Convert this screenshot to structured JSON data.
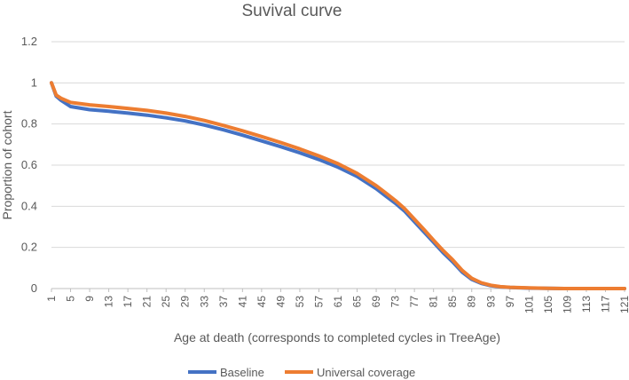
{
  "chart_data": {
    "type": "line",
    "title": "Suvival curve",
    "xlabel": "Age at death (corresponds to completed cycles in TreeAge)",
    "ylabel": "Proportion of cohort",
    "ylim": [
      0,
      1.2
    ],
    "yticks": [
      "0",
      "0.2",
      "0.4",
      "0.6",
      "0.8",
      "1",
      "1.2"
    ],
    "x_range": [
      1,
      121
    ],
    "xticks": [
      "1",
      "5",
      "9",
      "13",
      "17",
      "21",
      "25",
      "29",
      "33",
      "37",
      "41",
      "45",
      "49",
      "53",
      "57",
      "61",
      "65",
      "69",
      "73",
      "77",
      "81",
      "85",
      "89",
      "93",
      "97",
      "101",
      "105",
      "109",
      "113",
      "117",
      "121"
    ],
    "grid": true,
    "legend_position": "bottom",
    "series": [
      {
        "name": "Baseline",
        "color": "#4472c4",
        "points": [
          [
            1,
            1.0
          ],
          [
            2,
            0.935
          ],
          [
            3,
            0.915
          ],
          [
            5,
            0.885
          ],
          [
            9,
            0.87
          ],
          [
            13,
            0.862
          ],
          [
            17,
            0.853
          ],
          [
            21,
            0.843
          ],
          [
            25,
            0.83
          ],
          [
            29,
            0.815
          ],
          [
            33,
            0.795
          ],
          [
            37,
            0.772
          ],
          [
            41,
            0.746
          ],
          [
            45,
            0.718
          ],
          [
            49,
            0.69
          ],
          [
            53,
            0.66
          ],
          [
            57,
            0.627
          ],
          [
            61,
            0.59
          ],
          [
            65,
            0.545
          ],
          [
            69,
            0.485
          ],
          [
            71,
            0.45
          ],
          [
            73,
            0.415
          ],
          [
            75,
            0.375
          ],
          [
            77,
            0.325
          ],
          [
            79,
            0.275
          ],
          [
            81,
            0.225
          ],
          [
            83,
            0.175
          ],
          [
            85,
            0.13
          ],
          [
            87,
            0.08
          ],
          [
            89,
            0.045
          ],
          [
            91,
            0.025
          ],
          [
            93,
            0.014
          ],
          [
            95,
            0.008
          ],
          [
            97,
            0.005
          ],
          [
            101,
            0.002
          ],
          [
            105,
            0.001
          ],
          [
            109,
            0.0
          ],
          [
            113,
            0.0
          ],
          [
            117,
            0.0
          ],
          [
            121,
            0.0
          ]
        ]
      },
      {
        "name": "Universal coverage",
        "color": "#ed7d31",
        "points": [
          [
            1,
            1.0
          ],
          [
            2,
            0.94
          ],
          [
            3,
            0.925
          ],
          [
            5,
            0.905
          ],
          [
            9,
            0.893
          ],
          [
            13,
            0.885
          ],
          [
            17,
            0.876
          ],
          [
            21,
            0.866
          ],
          [
            25,
            0.853
          ],
          [
            29,
            0.837
          ],
          [
            33,
            0.817
          ],
          [
            37,
            0.793
          ],
          [
            41,
            0.767
          ],
          [
            45,
            0.739
          ],
          [
            49,
            0.71
          ],
          [
            53,
            0.679
          ],
          [
            57,
            0.645
          ],
          [
            61,
            0.607
          ],
          [
            65,
            0.56
          ],
          [
            69,
            0.5
          ],
          [
            71,
            0.465
          ],
          [
            73,
            0.428
          ],
          [
            75,
            0.387
          ],
          [
            77,
            0.337
          ],
          [
            79,
            0.287
          ],
          [
            81,
            0.235
          ],
          [
            83,
            0.185
          ],
          [
            85,
            0.14
          ],
          [
            87,
            0.088
          ],
          [
            89,
            0.05
          ],
          [
            91,
            0.028
          ],
          [
            93,
            0.016
          ],
          [
            95,
            0.009
          ],
          [
            97,
            0.006
          ],
          [
            101,
            0.003
          ],
          [
            105,
            0.001
          ],
          [
            109,
            0.0
          ],
          [
            113,
            0.0
          ],
          [
            117,
            0.0
          ],
          [
            121,
            0.0
          ]
        ]
      }
    ]
  }
}
